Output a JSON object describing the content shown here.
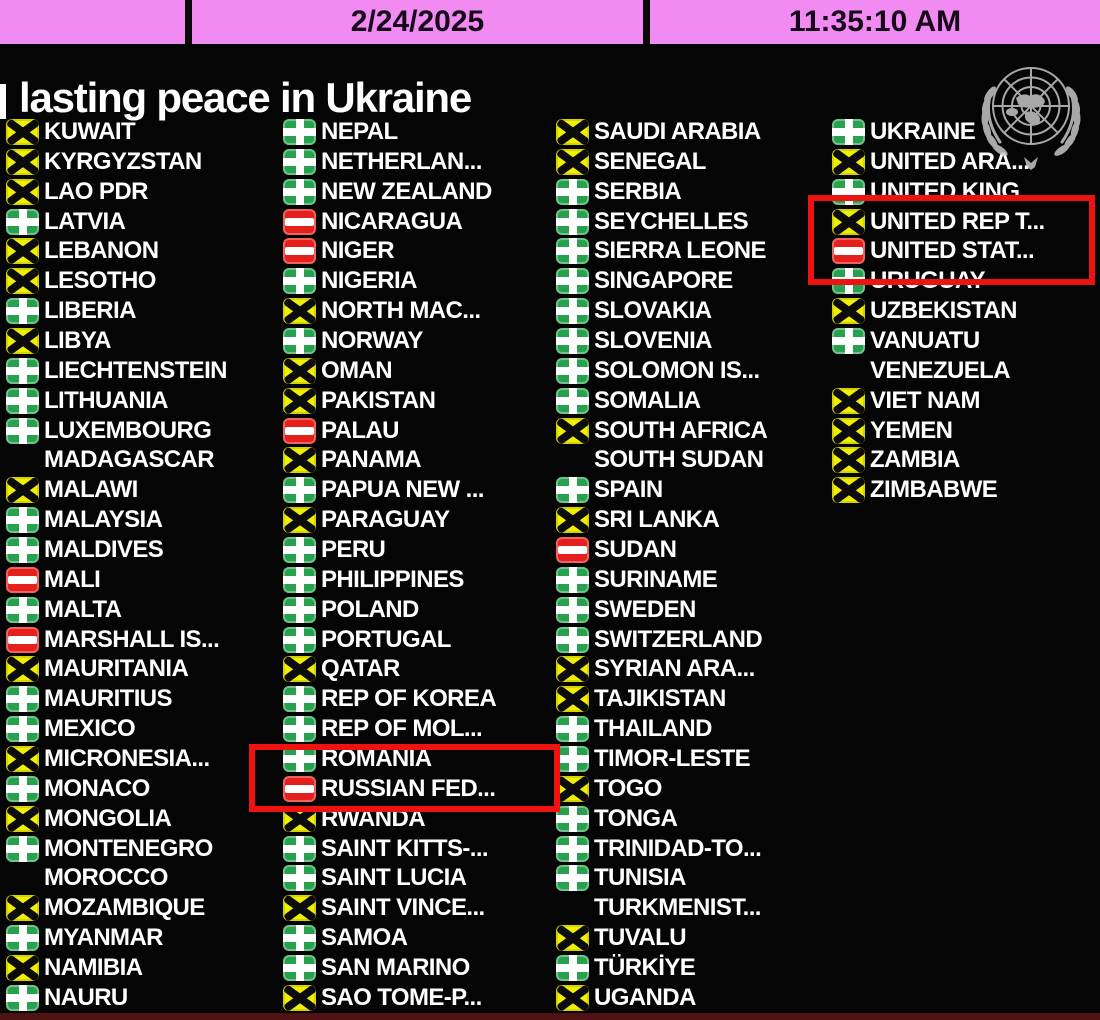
{
  "header": {
    "date": "2/24/2025",
    "time": "11:35:10 AM",
    "bar_color": "#f18af1"
  },
  "title": {
    "text": "lasting peace in Ukraine"
  },
  "vote_colors": {
    "yes": "#28a14f",
    "no": "#e5201c",
    "abstain": "#efef06",
    "highlight_box": "#ee1310"
  },
  "board": {
    "columns": [
      {
        "rows": [
          {
            "name": "KUWAIT",
            "vote": "abstain"
          },
          {
            "name": "KYRGYZSTAN",
            "vote": "abstain"
          },
          {
            "name": "LAO PDR",
            "vote": "abstain"
          },
          {
            "name": "LATVIA",
            "vote": "yes"
          },
          {
            "name": "LEBANON",
            "vote": "abstain"
          },
          {
            "name": "LESOTHO",
            "vote": "abstain"
          },
          {
            "name": "LIBERIA",
            "vote": "yes"
          },
          {
            "name": "LIBYA",
            "vote": "abstain"
          },
          {
            "name": "LIECHTENSTEIN",
            "vote": "yes"
          },
          {
            "name": "LITHUANIA",
            "vote": "yes"
          },
          {
            "name": "LUXEMBOURG",
            "vote": "yes"
          },
          {
            "name": "MADAGASCAR",
            "vote": "none"
          },
          {
            "name": "MALAWI",
            "vote": "abstain"
          },
          {
            "name": "MALAYSIA",
            "vote": "yes"
          },
          {
            "name": "MALDIVES",
            "vote": "yes"
          },
          {
            "name": "MALI",
            "vote": "no"
          },
          {
            "name": "MALTA",
            "vote": "yes"
          },
          {
            "name": "MARSHALL IS...",
            "vote": "no"
          },
          {
            "name": "MAURITANIA",
            "vote": "abstain"
          },
          {
            "name": "MAURITIUS",
            "vote": "yes"
          },
          {
            "name": "MEXICO",
            "vote": "yes"
          },
          {
            "name": "MICRONESIA...",
            "vote": "abstain"
          },
          {
            "name": "MONACO",
            "vote": "yes"
          },
          {
            "name": "MONGOLIA",
            "vote": "abstain"
          },
          {
            "name": "MONTENEGRO",
            "vote": "yes"
          },
          {
            "name": "MOROCCO",
            "vote": "none"
          },
          {
            "name": "MOZAMBIQUE",
            "vote": "abstain"
          },
          {
            "name": "MYANMAR",
            "vote": "yes"
          },
          {
            "name": "NAMIBIA",
            "vote": "abstain"
          },
          {
            "name": "NAURU",
            "vote": "yes"
          }
        ]
      },
      {
        "rows": [
          {
            "name": "NEPAL",
            "vote": "yes"
          },
          {
            "name": "NETHERLAN...",
            "vote": "yes"
          },
          {
            "name": "NEW ZEALAND",
            "vote": "yes"
          },
          {
            "name": "NICARAGUA",
            "vote": "no"
          },
          {
            "name": "NIGER",
            "vote": "no"
          },
          {
            "name": "NIGERIA",
            "vote": "yes"
          },
          {
            "name": "NORTH MAC...",
            "vote": "abstain"
          },
          {
            "name": "NORWAY",
            "vote": "yes"
          },
          {
            "name": "OMAN",
            "vote": "abstain"
          },
          {
            "name": "PAKISTAN",
            "vote": "abstain"
          },
          {
            "name": "PALAU",
            "vote": "no"
          },
          {
            "name": "PANAMA",
            "vote": "abstain"
          },
          {
            "name": "PAPUA NEW ...",
            "vote": "yes"
          },
          {
            "name": "PARAGUAY",
            "vote": "abstain"
          },
          {
            "name": "PERU",
            "vote": "yes"
          },
          {
            "name": "PHILIPPINES",
            "vote": "yes"
          },
          {
            "name": "POLAND",
            "vote": "yes"
          },
          {
            "name": "PORTUGAL",
            "vote": "yes"
          },
          {
            "name": "QATAR",
            "vote": "abstain"
          },
          {
            "name": "REP OF KOREA",
            "vote": "yes"
          },
          {
            "name": "REP OF MOL...",
            "vote": "yes"
          },
          {
            "name": "ROMANIA",
            "vote": "yes"
          },
          {
            "name": "RUSSIAN FED...",
            "vote": "no"
          },
          {
            "name": "RWANDA",
            "vote": "abstain"
          },
          {
            "name": "SAINT KITTS-...",
            "vote": "yes"
          },
          {
            "name": "SAINT LUCIA",
            "vote": "yes"
          },
          {
            "name": "SAINT VINCE...",
            "vote": "abstain"
          },
          {
            "name": "SAMOA",
            "vote": "yes"
          },
          {
            "name": "SAN MARINO",
            "vote": "yes"
          },
          {
            "name": "SAO TOME-P...",
            "vote": "abstain"
          }
        ]
      },
      {
        "rows": [
          {
            "name": "SAUDI ARABIA",
            "vote": "abstain"
          },
          {
            "name": "SENEGAL",
            "vote": "abstain"
          },
          {
            "name": "SERBIA",
            "vote": "yes"
          },
          {
            "name": "SEYCHELLES",
            "vote": "yes"
          },
          {
            "name": "SIERRA LEONE",
            "vote": "yes"
          },
          {
            "name": "SINGAPORE",
            "vote": "yes"
          },
          {
            "name": "SLOVAKIA",
            "vote": "yes"
          },
          {
            "name": "SLOVENIA",
            "vote": "yes"
          },
          {
            "name": "SOLOMON IS...",
            "vote": "yes"
          },
          {
            "name": "SOMALIA",
            "vote": "yes"
          },
          {
            "name": "SOUTH AFRICA",
            "vote": "abstain"
          },
          {
            "name": "SOUTH SUDAN",
            "vote": "none"
          },
          {
            "name": "SPAIN",
            "vote": "yes"
          },
          {
            "name": "SRI LANKA",
            "vote": "abstain"
          },
          {
            "name": "SUDAN",
            "vote": "no"
          },
          {
            "name": "SURINAME",
            "vote": "yes"
          },
          {
            "name": "SWEDEN",
            "vote": "yes"
          },
          {
            "name": "SWITZERLAND",
            "vote": "yes"
          },
          {
            "name": "SYRIAN ARA...",
            "vote": "abstain"
          },
          {
            "name": "TAJIKISTAN",
            "vote": "abstain"
          },
          {
            "name": "THAILAND",
            "vote": "yes"
          },
          {
            "name": "TIMOR-LESTE",
            "vote": "yes"
          },
          {
            "name": "TOGO",
            "vote": "abstain"
          },
          {
            "name": "TONGA",
            "vote": "yes"
          },
          {
            "name": "TRINIDAD-TO...",
            "vote": "yes"
          },
          {
            "name": "TUNISIA",
            "vote": "yes"
          },
          {
            "name": "TURKMENIST...",
            "vote": "none"
          },
          {
            "name": "TUVALU",
            "vote": "abstain"
          },
          {
            "name": "TÜRKİYE",
            "vote": "yes"
          },
          {
            "name": "UGANDA",
            "vote": "abstain"
          }
        ]
      },
      {
        "rows": [
          {
            "name": "UKRAINE",
            "vote": "yes"
          },
          {
            "name": "UNITED ARA...",
            "vote": "abstain"
          },
          {
            "name": "UNITED KING...",
            "vote": "yes"
          },
          {
            "name": "UNITED REP T...",
            "vote": "abstain"
          },
          {
            "name": "UNITED STAT...",
            "vote": "no"
          },
          {
            "name": "URUGUAY",
            "vote": "yes"
          },
          {
            "name": "UZBEKISTAN",
            "vote": "abstain"
          },
          {
            "name": "VANUATU",
            "vote": "yes"
          },
          {
            "name": "VENEZUELA",
            "vote": "none"
          },
          {
            "name": "VIET NAM",
            "vote": "abstain"
          },
          {
            "name": "YEMEN",
            "vote": "abstain"
          },
          {
            "name": "ZAMBIA",
            "vote": "abstain"
          },
          {
            "name": "ZIMBABWE",
            "vote": "abstain"
          }
        ]
      }
    ]
  }
}
